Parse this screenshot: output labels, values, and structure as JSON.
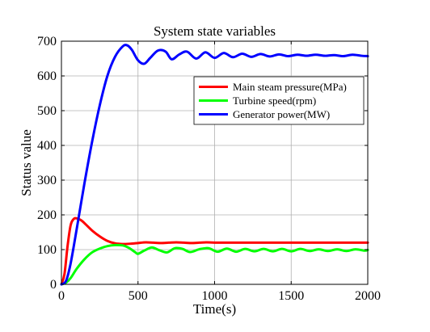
{
  "chart_data": {
    "type": "line",
    "title": "System state variables",
    "xlabel": "Time(s)",
    "ylabel": "Status value",
    "xlim": [
      0,
      2000
    ],
    "ylim": [
      0,
      700
    ],
    "xticks": [
      0,
      500,
      1000,
      1500,
      2000
    ],
    "yticks": [
      0,
      100,
      200,
      300,
      400,
      500,
      600,
      700
    ],
    "grid": true,
    "legend_position": "upper-right",
    "series": [
      {
        "name": "Main steam pressure(MPa)",
        "color": "#ff0000",
        "x": [
          0,
          20,
          40,
          60,
          80,
          100,
          130,
          160,
          200,
          250,
          300,
          350,
          400,
          450,
          500,
          550,
          600,
          650,
          700,
          750,
          800,
          850,
          900,
          950,
          1000,
          1100,
          1200,
          1300,
          1400,
          1500,
          1600,
          1700,
          1800,
          1900,
          2000
        ],
        "y": [
          0,
          30,
          110,
          170,
          188,
          190,
          184,
          172,
          155,
          138,
          125,
          118,
          116,
          117,
          119,
          121,
          120,
          119,
          120,
          121,
          120,
          119,
          120,
          121,
          120,
          120,
          120,
          120,
          120,
          120,
          120,
          120,
          120,
          120,
          120
        ]
      },
      {
        "name": "Turbine speed(rpm)",
        "color": "#00ff00",
        "x": [
          0,
          30,
          60,
          100,
          150,
          200,
          250,
          300,
          350,
          400,
          440,
          480,
          500,
          540,
          590,
          640,
          690,
          740,
          790,
          840,
          900,
          960,
          1020,
          1080,
          1140,
          1200,
          1260,
          1320,
          1380,
          1440,
          1500,
          1560,
          1620,
          1680,
          1740,
          1800,
          1860,
          1920,
          1980,
          2000
        ],
        "y": [
          0,
          5,
          18,
          45,
          72,
          92,
          103,
          110,
          113,
          112,
          105,
          93,
          88,
          97,
          106,
          98,
          92,
          104,
          102,
          93,
          101,
          104,
          94,
          103,
          94,
          102,
          95,
          102,
          95,
          102,
          95,
          102,
          96,
          101,
          96,
          101,
          96,
          101,
          97,
          99
        ]
      },
      {
        "name": "Generator power(MW)",
        "color": "#0000ff",
        "x": [
          0,
          30,
          60,
          100,
          150,
          200,
          250,
          300,
          350,
          400,
          430,
          460,
          500,
          540,
          580,
          630,
          680,
          720,
          770,
          820,
          880,
          940,
          1000,
          1060,
          1120,
          1180,
          1240,
          1300,
          1360,
          1420,
          1480,
          1540,
          1600,
          1660,
          1720,
          1780,
          1840,
          1900,
          1960,
          2000
        ],
        "y": [
          0,
          10,
          60,
          160,
          290,
          410,
          515,
          600,
          655,
          685,
          688,
          675,
          645,
          635,
          652,
          673,
          670,
          648,
          662,
          670,
          650,
          668,
          652,
          666,
          654,
          664,
          655,
          663,
          656,
          662,
          657,
          661,
          658,
          661,
          658,
          660,
          657,
          661,
          658,
          657
        ]
      }
    ]
  }
}
